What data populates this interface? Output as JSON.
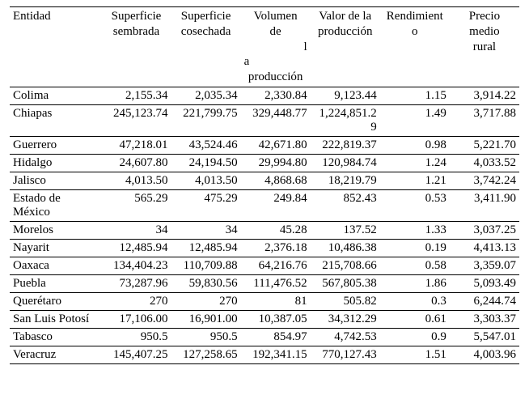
{
  "table": {
    "headers": {
      "entidad": "Entidad",
      "sup_sembrada_l1": "Superficie",
      "sup_sembrada_l2": "sembrada",
      "sup_cosechada_l1": "Superficie",
      "sup_cosechada_l2": "cosechada",
      "volumen_l1": "Volumen",
      "volumen_l2": "de",
      "volumen_l3": "l",
      "volumen_l4": "a",
      "volumen_l5": "producción",
      "valor_l1": "Valor de la",
      "valor_l2": "producción",
      "rend_l1": "Rendimient",
      "rend_l2": "o",
      "precio_l1": "Precio",
      "precio_l2": "medio",
      "precio_l3": "rural"
    },
    "rows": [
      {
        "entidad": "Colima",
        "c1": "2,155.34",
        "c2": "2,035.34",
        "c3": "2,330.84",
        "c4": "9,123.44",
        "c5": "1.15",
        "c6": "3,914.22"
      },
      {
        "entidad": "Chiapas",
        "c1": "245,123.74",
        "c2": "221,799.75",
        "c3": "329,448.77",
        "c4": "1,224,851.29",
        "c5": "1.49",
        "c6": "3,717.88"
      },
      {
        "entidad": "Guerrero",
        "c1": "47,218.01",
        "c2": "43,524.46",
        "c3": "42,671.80",
        "c4": "222,819.37",
        "c5": "0.98",
        "c6": "5,221.70"
      },
      {
        "entidad": "Hidalgo",
        "c1": "24,607.80",
        "c2": "24,194.50",
        "c3": "29,994.80",
        "c4": "120,984.74",
        "c5": "1.24",
        "c6": "4,033.52"
      },
      {
        "entidad": "Jalisco",
        "c1": "4,013.50",
        "c2": "4,013.50",
        "c3": "4,868.68",
        "c4": "18,219.79",
        "c5": "1.21",
        "c6": "3,742.24"
      },
      {
        "entidad": "Estado de México",
        "c1": "565.29",
        "c2": "475.29",
        "c3": "249.84",
        "c4": "852.43",
        "c5": "0.53",
        "c6": "3,411.90"
      },
      {
        "entidad": "Morelos",
        "c1": "34",
        "c2": "34",
        "c3": "45.28",
        "c4": "137.52",
        "c5": "1.33",
        "c6": "3,037.25"
      },
      {
        "entidad": "Nayarit",
        "c1": "12,485.94",
        "c2": "12,485.94",
        "c3": "2,376.18",
        "c4": "10,486.38",
        "c5": "0.19",
        "c6": "4,413.13"
      },
      {
        "entidad": "Oaxaca",
        "c1": "134,404.23",
        "c2": "110,709.88",
        "c3": "64,216.76",
        "c4": "215,708.66",
        "c5": "0.58",
        "c6": "3,359.07"
      },
      {
        "entidad": "Puebla",
        "c1": "73,287.96",
        "c2": "59,830.56",
        "c3": "111,476.52",
        "c4": "567,805.38",
        "c5": "1.86",
        "c6": "5,093.49"
      },
      {
        "entidad": "Querétaro",
        "c1": "270",
        "c2": "270",
        "c3": "81",
        "c4": "505.82",
        "c5": "0.3",
        "c6": "6,244.74"
      },
      {
        "entidad": "San Luis Potosí",
        "c1": "17,106.00",
        "c2": "16,901.00",
        "c3": "10,387.05",
        "c4": "34,312.29",
        "c5": "0.61",
        "c6": "3,303.37"
      },
      {
        "entidad": "Tabasco",
        "c1": "950.5",
        "c2": "950.5",
        "c3": "854.97",
        "c4": "4,742.53",
        "c5": "0.9",
        "c6": "5,547.01"
      },
      {
        "entidad": "Veracruz",
        "c1": "145,407.25",
        "c2": "127,258.65",
        "c3": "192,341.15",
        "c4": "770,127.43",
        "c5": "1.51",
        "c6": "4,003.96"
      }
    ]
  }
}
